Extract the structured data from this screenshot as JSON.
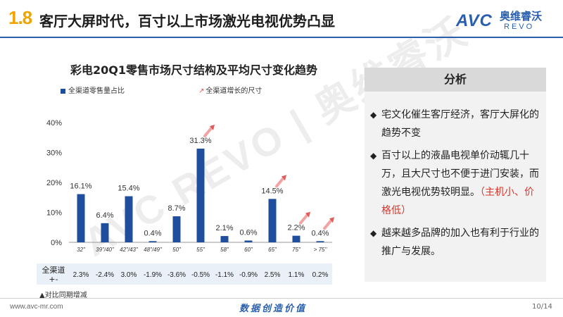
{
  "header": {
    "section_number": "1.8",
    "title": "客厅大屏时代，百寸以上市场激光电视优势凸显",
    "logo_avc": "AVC",
    "logo_cn": "奥维睿沃",
    "logo_revo": "REVO"
  },
  "watermark": "AVC REVO | 奥维睿沃",
  "chart_data": {
    "type": "bar",
    "title": "彩电20Q1零售市场尺寸结构及平均尺寸变化趋势",
    "legend": [
      {
        "label": "全渠道零售量占比",
        "color": "#1f4e9c"
      },
      {
        "label": "全渠道增长的尺寸",
        "color": "#e05c5c"
      }
    ],
    "categories": [
      "32\"",
      "39\"/40\"",
      "42\"/43\"",
      "48\"/49\"",
      "50\"",
      "55\"",
      "58\"",
      "60\"",
      "65\"",
      "75\"",
      "> 75\""
    ],
    "series": [
      {
        "name": "全渠道零售量占比",
        "values": [
          16.1,
          6.4,
          15.4,
          0.4,
          8.7,
          31.3,
          2.1,
          0.6,
          14.5,
          2.2,
          0.4
        ]
      }
    ],
    "value_labels": [
      "16.1%",
      "6.4%",
      "15.4%",
      "0.4%",
      "8.7%",
      "31.3%",
      "2.1%",
      "0.6%",
      "14.5%",
      "2.2%",
      "0.4%"
    ],
    "growth_arrow_categories": [
      "55\"",
      "65\"",
      "75\"",
      "> 75\""
    ],
    "yticks": [
      "0%",
      "10%",
      "20%",
      "30%",
      "40%"
    ],
    "ylim": [
      0,
      40
    ],
    "table": {
      "row_label": "全渠道+-",
      "values": [
        "2.3%",
        "-2.4%",
        "3.0%",
        "-1.9%",
        "-3.6%",
        "-0.5%",
        "-1.1%",
        "-0.9%",
        "2.5%",
        "1.1%",
        "0.2%"
      ]
    },
    "note": "▲对比同期增减"
  },
  "panel": {
    "title": "分析",
    "bullets": [
      {
        "text": "宅文化催生客厅经济，客厅大屏化的趋势不变",
        "highlight": ""
      },
      {
        "text": "百寸以上的液晶电视单价动辄几十万，且大尺寸也不便于进门安装，而激光电视优势较明显。",
        "highlight": "（主机小、价格低）"
      },
      {
        "text": "越来越多品牌的加入也有利于行业的推广与发展。",
        "highlight": ""
      }
    ]
  },
  "footer": {
    "url": "www.avc-mr.com",
    "slogan": "数据创造价值",
    "page": "10/14"
  }
}
